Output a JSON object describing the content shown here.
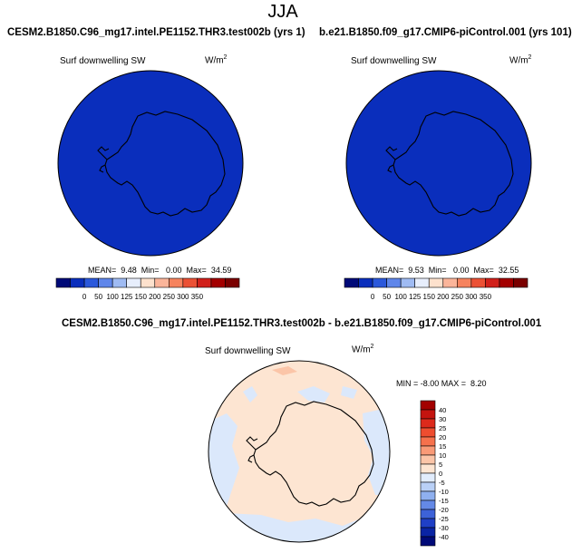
{
  "figure": {
    "title": "JJA"
  },
  "panels": {
    "left": {
      "title": "CESM2.B1850.C96_mg17.intel.PE1152.THR3.test002b (yrs 1)",
      "variable": "Surf downwelling SW",
      "units_base": "W/m",
      "units_exp": "2",
      "stats": "MEAN=  9.48  Min=   0.00  Max=  34.59",
      "fill_color": "#0a2ebc"
    },
    "right": {
      "title": "b.e21.B1850.f09_g17.CMIP6-piControl.001 (yrs 101)",
      "variable": "Surf downwelling SW",
      "units_base": "W/m",
      "units_exp": "2",
      "stats": "MEAN=  9.53  Min=   0.00  Max=  32.55",
      "fill_color": "#0a2ebc"
    },
    "diff": {
      "title": "CESM2.B1850.C96_mg17.intel.PE1152.THR3.test002b - b.e21.B1850.f09_g17.CMIP6-piControl.001",
      "variable": "Surf downwelling SW",
      "units_base": "W/m",
      "units_exp": "2",
      "stats": "MIN = -8.00 MAX =  8.20"
    }
  },
  "colorbars": {
    "abs": {
      "labels": [
        "0",
        "50",
        "100",
        "125",
        "150",
        "200",
        "250",
        "300",
        "350"
      ],
      "colors": [
        "#000a78",
        "#0a2ebc",
        "#2b58db",
        "#5f86ea",
        "#9fbbf3",
        "#e7eefc",
        "#fde1cd",
        "#fbb59a",
        "#f6835e",
        "#eb5135",
        "#d1201a",
        "#a30000",
        "#7a0000"
      ]
    },
    "diff": {
      "labels": [
        "40",
        "30",
        "25",
        "20",
        "15",
        "10",
        "5",
        "0",
        "-5",
        "-10",
        "-15",
        "-20",
        "-25",
        "-30",
        "-40"
      ],
      "colors": [
        "#a30000",
        "#c4140f",
        "#dd2a1b",
        "#ee4d2f",
        "#f6714c",
        "#f99a77",
        "#fbc5a8",
        "#fde5d2",
        "#e1ecfc",
        "#b9d0f6",
        "#8fb0ef",
        "#6489e6",
        "#3d62d8",
        "#1f3fc6",
        "#0a24a4",
        "#000a78"
      ]
    }
  }
}
